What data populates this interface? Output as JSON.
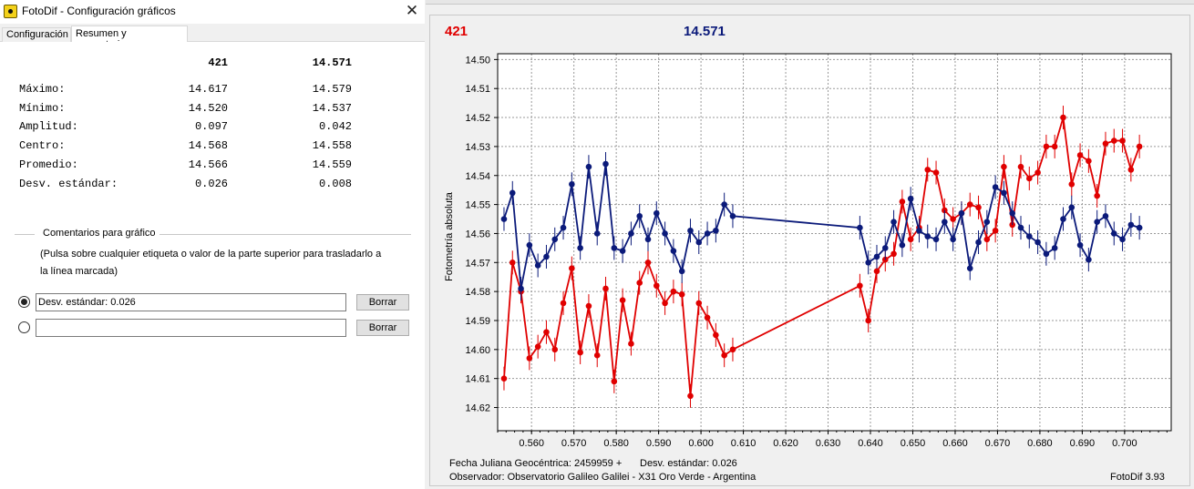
{
  "dialog": {
    "title": "FotoDif - Configuración gráficos",
    "close_glyph": "✕",
    "tabs": [
      "Configuración",
      "Resumen y comentarios"
    ]
  },
  "stats": {
    "col1": "421",
    "col2": "14.571",
    "rows": [
      {
        "label": "Máximo:",
        "v1": "14.617",
        "v2": "14.579"
      },
      {
        "label": "Mínimo:",
        "v1": "14.520",
        "v2": "14.537"
      },
      {
        "label": "Amplitud:",
        "v1": "0.097",
        "v2": "0.042"
      },
      {
        "label": "Centro:",
        "v1": "14.568",
        "v2": "14.558"
      },
      {
        "label": "Promedio:",
        "v1": "14.566",
        "v2": "14.559"
      },
      {
        "label": "Desv. estándar:",
        "v1": "0.026",
        "v2": "0.008"
      }
    ]
  },
  "comments": {
    "title": "Comentarios para gráfico",
    "hint": "(Pulsa sobre cualquier etiqueta o valor de la parte superior para trasladarlo a la línea marcada)",
    "inputs": [
      {
        "value": "Desv. estándar: 0.026",
        "selected": true
      },
      {
        "value": "",
        "selected": false
      }
    ],
    "clear_label": "Borrar"
  },
  "chart": {
    "label_red": "421",
    "label_blue": "14.571",
    "footer_line1": "Fecha Juliana Geocéntrica: 2459959 +",
    "footer_std": "Desv. estándar: 0.026",
    "footer_line2": "Observador: Observatorio Galileo Galilei - X31 Oro Verde - Argentina",
    "version": "FotoDif 3.93"
  },
  "chart_data": {
    "type": "line",
    "title": "",
    "xlabel": "",
    "ylabel": "Fotometría absoluta",
    "xlim": [
      0.552,
      0.711
    ],
    "ylim": [
      14.498,
      14.628
    ],
    "y_inverted": true,
    "grid": true,
    "x_ticks": [
      "0.560",
      "0.570",
      "0.580",
      "0.590",
      "0.600",
      "0.610",
      "0.620",
      "0.630",
      "0.640",
      "0.650",
      "0.660",
      "0.670",
      "0.680",
      "0.690",
      "0.700"
    ],
    "y_ticks": [
      "14.50",
      "14.51",
      "14.52",
      "14.53",
      "14.54",
      "14.55",
      "14.56",
      "14.57",
      "14.58",
      "14.59",
      "14.60",
      "14.61",
      "14.62"
    ],
    "colors": {
      "red": "#e00000",
      "blue": "#0b1a7a"
    },
    "series": [
      {
        "name": "421",
        "color": "#e00000",
        "points": [
          [
            0.5535,
            14.61
          ],
          [
            0.5555,
            14.57
          ],
          [
            0.5575,
            14.58
          ],
          [
            0.5595,
            14.603
          ],
          [
            0.5615,
            14.599
          ],
          [
            0.5635,
            14.594
          ],
          [
            0.5655,
            14.6
          ],
          [
            0.5675,
            14.584
          ],
          [
            0.5695,
            14.572
          ],
          [
            0.5715,
            14.601
          ],
          [
            0.5735,
            14.585
          ],
          [
            0.5755,
            14.602
          ],
          [
            0.5775,
            14.579
          ],
          [
            0.5795,
            14.611
          ],
          [
            0.5815,
            14.583
          ],
          [
            0.5835,
            14.598
          ],
          [
            0.5855,
            14.577
          ],
          [
            0.5875,
            14.57
          ],
          [
            0.5895,
            14.578
          ],
          [
            0.5915,
            14.584
          ],
          [
            0.5935,
            14.58
          ],
          [
            0.5955,
            14.581
          ],
          [
            0.5975,
            14.616
          ],
          [
            0.5995,
            14.584
          ],
          [
            0.6015,
            14.589
          ],
          [
            0.6035,
            14.595
          ],
          [
            0.6055,
            14.602
          ],
          [
            0.6075,
            14.6
          ],
          [
            0.6375,
            14.578
          ],
          [
            0.6395,
            14.59
          ],
          [
            0.6415,
            14.573
          ],
          [
            0.6435,
            14.569
          ],
          [
            0.6455,
            14.567
          ],
          [
            0.6475,
            14.549
          ],
          [
            0.6495,
            14.562
          ],
          [
            0.6515,
            14.558
          ],
          [
            0.6535,
            14.538
          ],
          [
            0.6555,
            14.539
          ],
          [
            0.6575,
            14.552
          ],
          [
            0.6595,
            14.555
          ],
          [
            0.6615,
            14.553
          ],
          [
            0.6635,
            14.55
          ],
          [
            0.6655,
            14.551
          ],
          [
            0.6675,
            14.562
          ],
          [
            0.6695,
            14.559
          ],
          [
            0.6715,
            14.537
          ],
          [
            0.6735,
            14.557
          ],
          [
            0.6755,
            14.537
          ],
          [
            0.6775,
            14.541
          ],
          [
            0.6795,
            14.539
          ],
          [
            0.6815,
            14.53
          ],
          [
            0.6835,
            14.53
          ],
          [
            0.6855,
            14.52
          ],
          [
            0.6875,
            14.543
          ],
          [
            0.6895,
            14.533
          ],
          [
            0.6915,
            14.535
          ],
          [
            0.6935,
            14.547
          ],
          [
            0.6955,
            14.529
          ],
          [
            0.6975,
            14.528
          ],
          [
            0.6995,
            14.528
          ],
          [
            0.7015,
            14.538
          ],
          [
            0.7035,
            14.53
          ]
        ]
      },
      {
        "name": "14.571",
        "color": "#0b1a7a",
        "points": [
          [
            0.5535,
            14.555
          ],
          [
            0.5555,
            14.546
          ],
          [
            0.5575,
            14.579
          ],
          [
            0.5595,
            14.564
          ],
          [
            0.5615,
            14.571
          ],
          [
            0.5635,
            14.568
          ],
          [
            0.5655,
            14.562
          ],
          [
            0.5675,
            14.558
          ],
          [
            0.5695,
            14.543
          ],
          [
            0.5715,
            14.565
          ],
          [
            0.5735,
            14.537
          ],
          [
            0.5755,
            14.56
          ],
          [
            0.5775,
            14.536
          ],
          [
            0.5795,
            14.565
          ],
          [
            0.5815,
            14.566
          ],
          [
            0.5835,
            14.56
          ],
          [
            0.5855,
            14.554
          ],
          [
            0.5875,
            14.562
          ],
          [
            0.5895,
            14.553
          ],
          [
            0.5915,
            14.56
          ],
          [
            0.5935,
            14.566
          ],
          [
            0.5955,
            14.573
          ],
          [
            0.5975,
            14.559
          ],
          [
            0.5995,
            14.563
          ],
          [
            0.6015,
            14.56
          ],
          [
            0.6035,
            14.559
          ],
          [
            0.6055,
            14.55
          ],
          [
            0.6075,
            14.554
          ],
          [
            0.6375,
            14.558
          ],
          [
            0.6395,
            14.57
          ],
          [
            0.6415,
            14.568
          ],
          [
            0.6435,
            14.565
          ],
          [
            0.6455,
            14.556
          ],
          [
            0.6475,
            14.564
          ],
          [
            0.6495,
            14.548
          ],
          [
            0.6515,
            14.559
          ],
          [
            0.6535,
            14.561
          ],
          [
            0.6555,
            14.562
          ],
          [
            0.6575,
            14.556
          ],
          [
            0.6595,
            14.562
          ],
          [
            0.6615,
            14.553
          ],
          [
            0.6635,
            14.572
          ],
          [
            0.6655,
            14.563
          ],
          [
            0.6675,
            14.556
          ],
          [
            0.6695,
            14.544
          ],
          [
            0.6715,
            14.546
          ],
          [
            0.6735,
            14.553
          ],
          [
            0.6755,
            14.558
          ],
          [
            0.6775,
            14.561
          ],
          [
            0.6795,
            14.563
          ],
          [
            0.6815,
            14.567
          ],
          [
            0.6835,
            14.565
          ],
          [
            0.6855,
            14.555
          ],
          [
            0.6875,
            14.551
          ],
          [
            0.6895,
            14.564
          ],
          [
            0.6915,
            14.569
          ],
          [
            0.6935,
            14.556
          ],
          [
            0.6955,
            14.554
          ],
          [
            0.6975,
            14.56
          ],
          [
            0.6995,
            14.562
          ],
          [
            0.7015,
            14.557
          ],
          [
            0.7035,
            14.558
          ]
        ]
      }
    ]
  }
}
